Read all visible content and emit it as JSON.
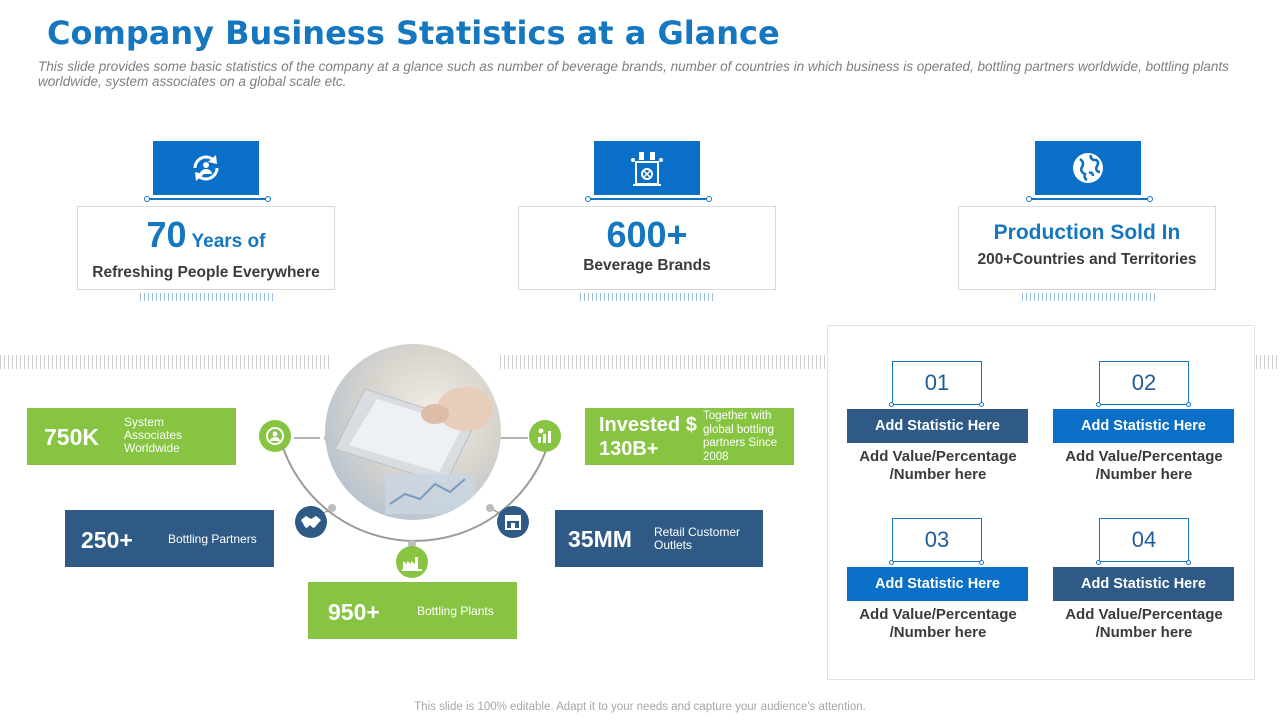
{
  "header": {
    "title": "Company Business Statistics at a Glance",
    "subtitle": "This slide provides some basic statistics of the company at a glance such as number of beverage brands, number of countries in which business is operated, bottling partners worldwide, bottling plants worldwide,  system associates on a global scale etc."
  },
  "top_stats": [
    {
      "icon": "refresh-people-icon",
      "big": "70",
      "big_suffix": " Years of",
      "sub": "Refreshing People Everywhere"
    },
    {
      "icon": "bottling-machine-icon",
      "big": "600+",
      "sub": "Beverage Brands"
    },
    {
      "icon": "globe-icon",
      "mid": "Production Sold In",
      "sub": "200+Countries and Territories"
    }
  ],
  "left_stats": {
    "associates": {
      "value": "750K",
      "label": "System Associates Worldwide"
    },
    "invested": {
      "value": "Invested $ 130B+",
      "label": "Together with global bottling partners Since 2008"
    },
    "partners": {
      "value": "250+",
      "label": "Bottling Partners"
    },
    "outlets": {
      "value": "35MM",
      "label": "Retail Customer Outlets"
    },
    "plants": {
      "value": "950+",
      "label": "Bottling Plants"
    }
  },
  "right_panel": [
    {
      "num": "01",
      "bar": "Add  Statistic Here",
      "val1": "Add  Value/Percentage",
      "val2": "/Number here"
    },
    {
      "num": "02",
      "bar": "Add  Statistic Here",
      "val1": "Add  Value/Percentage",
      "val2": "/Number here"
    },
    {
      "num": "03",
      "bar": "Add  Statistic Here",
      "val1": "Add  Value/Percentage",
      "val2": "/Number here"
    },
    {
      "num": "04",
      "bar": "Add  Statistic Here",
      "val1": "Add  Value/Percentage",
      "val2": "/Number here"
    }
  ],
  "footer": "This slide is 100% editable. Adapt it to your needs and capture your audience's attention.",
  "colors": {
    "blue": "#0a6fc7",
    "navy": "#2e5a85",
    "green": "#86c441"
  }
}
